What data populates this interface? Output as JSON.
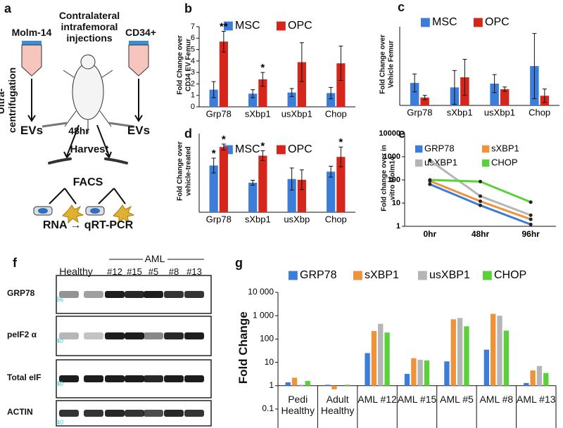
{
  "diagram": {
    "label": "a",
    "left_source": "Molm-14",
    "center_title": "Contralateral intrafemoral injections",
    "right_source": "CD34+",
    "left_step": "Ultra-centrifugation",
    "left_product": "EVs",
    "right_product": "EVs",
    "time": "48hr",
    "harvest": "Harvest",
    "sort": "FACS",
    "readout": "RNA → qRT-PCR"
  },
  "blot": {
    "label": "f",
    "healthy": "Healthy",
    "group": "AML",
    "lanes": [
      "#12",
      "#15",
      "#5",
      "#8",
      "#13"
    ],
    "rows": [
      "GRP78",
      "peIF2 α",
      "Total eIF",
      "ACTIN"
    ],
    "markers": [
      "66",
      "40",
      "40",
      "40"
    ]
  },
  "chart_data": [
    {
      "type": "bar",
      "label": "b",
      "ylabel": "Fold Change over CD34 EV Femur",
      "categories": [
        "Grp78",
        "sXbp1",
        "usXbp1",
        "Chop"
      ],
      "ylim": [
        0,
        7
      ],
      "yticks": [
        0,
        1,
        2,
        3,
        4,
        5,
        6,
        7
      ],
      "series": [
        {
          "name": "MSC",
          "color": "#3b7dd8",
          "values": [
            1.5,
            1.15,
            1.25,
            1.2
          ],
          "errors": [
            0.7,
            0.35,
            0.35,
            0.5
          ]
        },
        {
          "name": "OPC",
          "color": "#d6261c",
          "values": [
            5.7,
            2.4,
            3.9,
            3.8
          ],
          "errors": [
            0.9,
            0.6,
            1.7,
            1.5
          ],
          "significance": [
            "**",
            "*",
            null,
            null
          ]
        }
      ]
    },
    {
      "type": "bar",
      "label": "c",
      "ylabel": "Fold Change over Vehicle Femur",
      "categories": [
        "Grp78",
        "sXbp1",
        "usXbp1",
        "Chop"
      ],
      "ylim": [
        0,
        3.5
      ],
      "series": [
        {
          "name": "MSC",
          "color": "#3b7dd8",
          "values": [
            1.0,
            0.8,
            0.97,
            1.75
          ],
          "errors": [
            0.4,
            0.75,
            0.4,
            1.45
          ]
        },
        {
          "name": "OPC",
          "color": "#d6261c",
          "values": [
            0.35,
            1.25,
            0.72,
            0.43
          ],
          "errors": [
            0.1,
            0.8,
            0.1,
            0.3
          ]
        }
      ]
    },
    {
      "type": "bar",
      "label": "d",
      "ylabel": "Fold Change over vehicle-treated",
      "categories": [
        "Grp78",
        "sXbp1",
        "usXbp",
        "Chop"
      ],
      "ylim": [
        0,
        3.2
      ],
      "series": [
        {
          "name": "MSC",
          "color": "#3b7dd8",
          "values": [
            1.9,
            1.2,
            1.35,
            1.65
          ],
          "errors": [
            0.3,
            0.1,
            0.45,
            0.22
          ],
          "significance": [
            "*",
            null,
            null,
            null
          ]
        },
        {
          "name": "OPC",
          "color": "#d6261c",
          "values": [
            2.65,
            2.3,
            1.32,
            2.25
          ],
          "errors": [
            0.12,
            0.2,
            0.4,
            0.4
          ],
          "significance": [
            "*",
            "*",
            null,
            "*"
          ]
        }
      ]
    },
    {
      "type": "line",
      "label": "e",
      "ylabel": "Fold change over in vitro Molm14",
      "categories": [
        "0hr",
        "48hr",
        "96hr"
      ],
      "log_scale": true,
      "ylim": [
        1,
        10000
      ],
      "yticks": [
        1,
        10,
        100,
        1000,
        10000
      ],
      "series": [
        {
          "name": "GRP78",
          "color": "#3b7dd8",
          "values": [
            65,
            8,
            1.2
          ]
        },
        {
          "name": "sXBP1",
          "color": "#f0923a",
          "values": [
            90,
            12,
            2
          ]
        },
        {
          "name": "usXBP1",
          "color": "#b5b5b5",
          "values": [
            700,
            20,
            3
          ]
        },
        {
          "name": "CHOP",
          "color": "#5ad13a",
          "values": [
            100,
            85,
            11
          ]
        }
      ]
    },
    {
      "type": "bar",
      "label": "g",
      "ylabel": "Fold Change",
      "log_scale": true,
      "categories": [
        "Pedi Healthy",
        "Adult Healthy",
        "AML #12",
        "AML #15",
        "AML #5",
        "AML #8",
        "AML #13"
      ],
      "ylim": [
        0.1,
        10000
      ],
      "yticks": [
        0.1,
        1,
        10,
        100,
        {
          "value": 1000,
          "label": "1 000"
        },
        {
          "value": 10000,
          "label": "10 000"
        }
      ],
      "series": [
        {
          "name": "GRP78",
          "color": "#3b7dd8",
          "values": [
            1.4,
            1.1,
            25,
            3.2,
            11,
            35,
            1.3
          ]
        },
        {
          "name": "sXBP1",
          "color": "#f0923a",
          "values": [
            2.2,
            0.7,
            220,
            15,
            700,
            1200,
            4.5
          ]
        },
        {
          "name": "usXBP1",
          "color": "#b5b5b5",
          "values": [
            1.1,
            1.0,
            450,
            13,
            800,
            1000,
            7
          ]
        },
        {
          "name": "CHOP",
          "color": "#5ad13a",
          "values": [
            1.6,
            1.1,
            190,
            12,
            350,
            230,
            3.5
          ]
        }
      ]
    }
  ]
}
